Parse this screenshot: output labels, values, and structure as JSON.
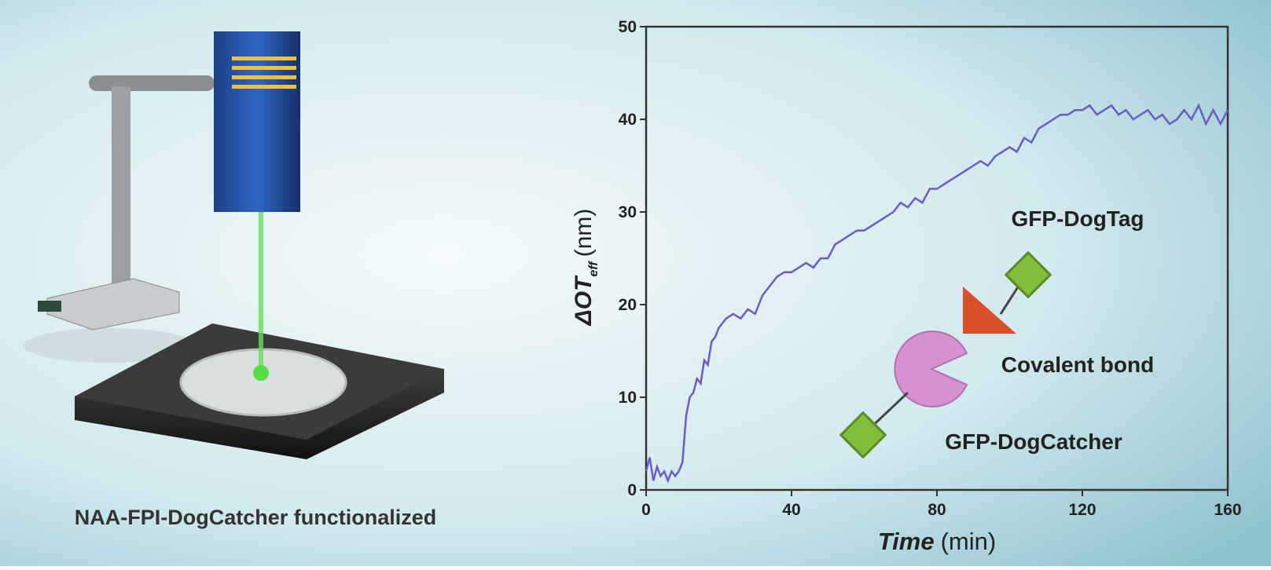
{
  "chart_data": {
    "type": "line",
    "caption": "NAA-FPI-DogCatcher functionalized",
    "ylabel": {
      "symbol": "ΔOT",
      "subscript": "eff",
      "unit": "(nm)"
    },
    "xlabel": {
      "name": "Time",
      "unit": "(min)"
    },
    "annotations": [
      "GFP-DogTag",
      "Covalent bond",
      "GFP-DogCatcher"
    ],
    "xlim": [
      0,
      160
    ],
    "ylim": [
      0,
      50
    ],
    "xticks": [
      0,
      40,
      80,
      120,
      160
    ],
    "yticks": [
      0,
      10,
      20,
      30,
      40,
      50
    ],
    "series": [
      {
        "color": "#6a5cc8",
        "x": [
          0,
          1,
          2,
          3,
          4,
          5,
          6,
          7,
          8,
          9,
          10,
          11,
          12,
          13,
          14,
          15,
          16,
          17,
          18,
          19,
          20,
          22,
          24,
          26,
          28,
          30,
          32,
          34,
          36,
          38,
          40,
          42,
          44,
          46,
          48,
          50,
          52,
          54,
          56,
          58,
          60,
          62,
          64,
          66,
          68,
          70,
          72,
          74,
          76,
          78,
          80,
          82,
          84,
          86,
          88,
          90,
          92,
          94,
          96,
          98,
          100,
          102,
          104,
          106,
          108,
          110,
          112,
          114,
          116,
          118,
          120,
          122,
          124,
          126,
          128,
          130,
          132,
          134,
          136,
          138,
          140,
          142,
          144,
          146,
          148,
          150,
          152,
          154,
          156,
          158,
          160
        ],
        "values": [
          2,
          3.5,
          1,
          2.5,
          1.5,
          2,
          1,
          2,
          1.5,
          2,
          3,
          8,
          10,
          10.5,
          12,
          11.5,
          14,
          13.5,
          16,
          16.5,
          17.5,
          18.5,
          19,
          18.5,
          19.5,
          19,
          21,
          22,
          23,
          23.5,
          23.5,
          24,
          24.5,
          24,
          25,
          25,
          26.5,
          27,
          27.5,
          28,
          28,
          28.5,
          29,
          29.5,
          30,
          31,
          30.5,
          31.5,
          31,
          32.5,
          32.5,
          33,
          33.5,
          34,
          34.5,
          35,
          35.5,
          35,
          36,
          36.5,
          37,
          36.5,
          38,
          37.5,
          39,
          39.5,
          40,
          40.5,
          40.5,
          41,
          41,
          41.5,
          40.5,
          41,
          41.5,
          40.5,
          41,
          40,
          40.5,
          41,
          40,
          40.5,
          39.5,
          40,
          41,
          40,
          41.5,
          39.5,
          41,
          39.5,
          41
        ]
      }
    ]
  }
}
